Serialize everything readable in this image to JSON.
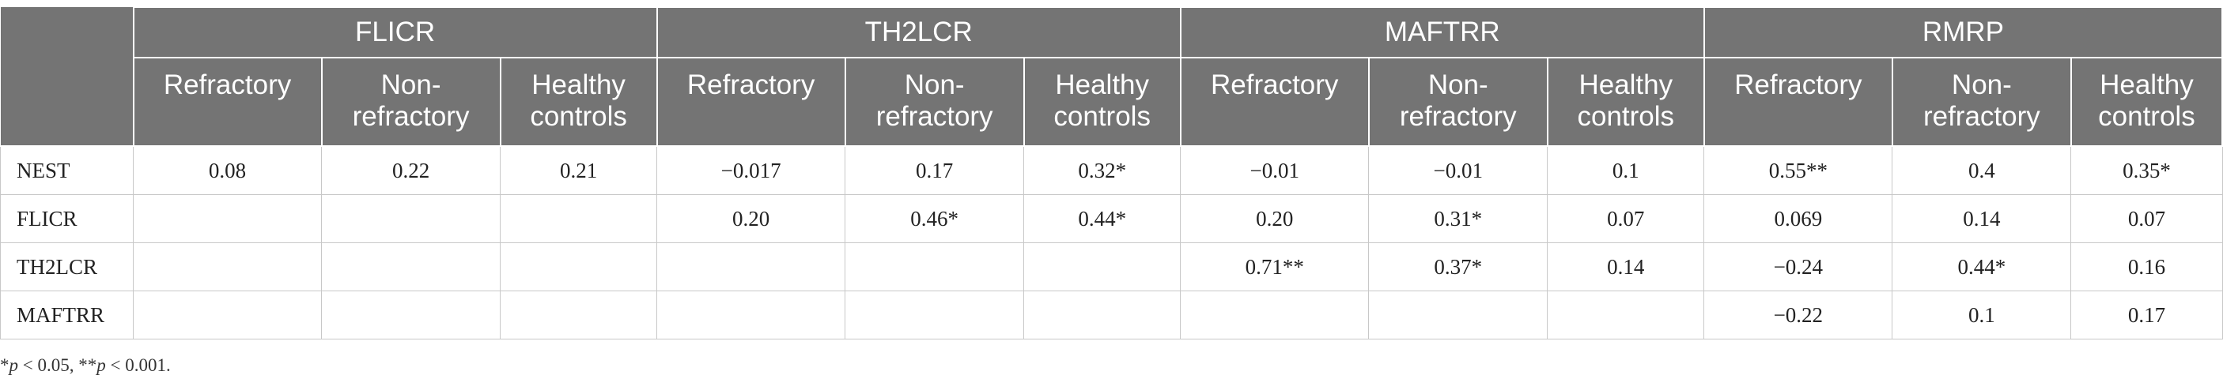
{
  "groups": [
    "FLICR",
    "TH2LCR",
    "MAFTRR",
    "RMRP"
  ],
  "subheaders": [
    [
      "Refractory",
      "Non-\nrefractory",
      "Healthy\ncontrols"
    ],
    [
      "Refractory",
      "Non-\nrefractory",
      "Healthy\ncontrols"
    ],
    [
      "Refractory",
      "Non-\nrefractory",
      "Healthy\ncontrols"
    ],
    [
      "Refractory",
      "Non-\nrefractory",
      "Healthy\ncontrols"
    ]
  ],
  "rows": [
    {
      "label": "NEST",
      "cells": [
        "0.08",
        "0.22",
        "0.21",
        "−0.017",
        "0.17",
        "0.32*",
        "−0.01",
        "−0.01",
        "0.1",
        "0.55**",
        "0.4",
        "0.35*"
      ]
    },
    {
      "label": "FLICR",
      "cells": [
        "",
        "",
        "",
        "0.20",
        "0.46*",
        "0.44*",
        "0.20",
        "0.31*",
        "0.07",
        "0.069",
        "0.14",
        "0.07"
      ]
    },
    {
      "label": "TH2LCR",
      "cells": [
        "",
        "",
        "",
        "",
        "",
        "",
        "0.71**",
        "0.37*",
        "0.14",
        "−0.24",
        "0.44*",
        "0.16"
      ]
    },
    {
      "label": "MAFTRR",
      "cells": [
        "",
        "",
        "",
        "",
        "",
        "",
        "",
        "",
        "",
        "−0.22",
        "0.1",
        "0.17"
      ]
    }
  ],
  "footnote": {
    "p1_sym": "*",
    "p1_var": "p",
    "p1_rest": " < 0.05, ",
    "p2_sym": "**",
    "p2_var": "p",
    "p2_rest": " < 0.001."
  }
}
